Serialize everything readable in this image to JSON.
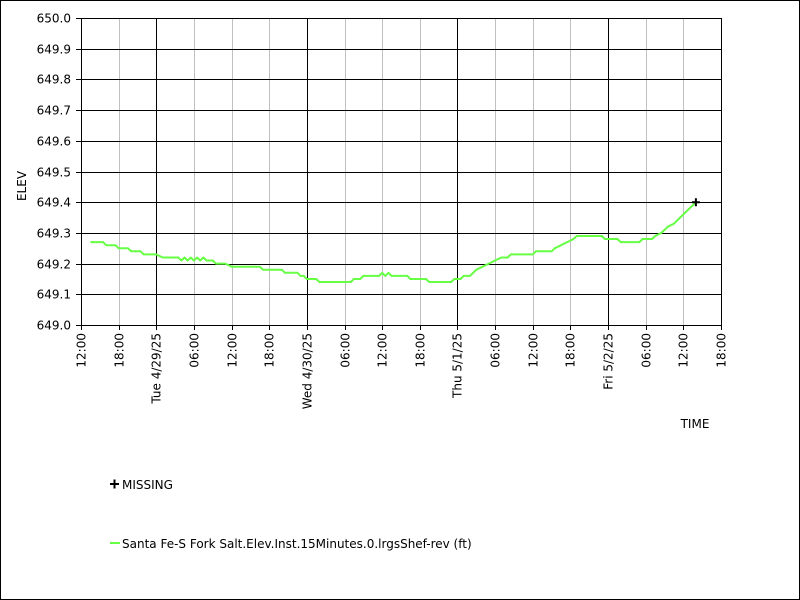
{
  "chart_data": {
    "type": "line",
    "title": "",
    "xlabel": "TIME",
    "ylabel": "ELEV",
    "ylim": [
      649.0,
      650.0
    ],
    "yticks": [
      "649.0",
      "649.1",
      "649.2",
      "649.3",
      "649.4",
      "649.5",
      "649.6",
      "649.7",
      "649.8",
      "649.9",
      "650.0"
    ],
    "xrange_hours": [
      0,
      102
    ],
    "xticks": [
      {
        "hour": 0,
        "label": "12:00",
        "major": false
      },
      {
        "hour": 6,
        "label": "18:00",
        "major": false
      },
      {
        "hour": 12,
        "label": "Tue 4/29/25",
        "major": true
      },
      {
        "hour": 18,
        "label": "06:00",
        "major": false
      },
      {
        "hour": 24,
        "label": "12:00",
        "major": false
      },
      {
        "hour": 30,
        "label": "18:00",
        "major": false
      },
      {
        "hour": 36,
        "label": "Wed 4/30/25",
        "major": true
      },
      {
        "hour": 42,
        "label": "06:00",
        "major": false
      },
      {
        "hour": 48,
        "label": "12:00",
        "major": false
      },
      {
        "hour": 54,
        "label": "18:00",
        "major": false
      },
      {
        "hour": 60,
        "label": "Thu 5/1/25",
        "major": true
      },
      {
        "hour": 66,
        "label": "06:00",
        "major": false
      },
      {
        "hour": 72,
        "label": "12:00",
        "major": false
      },
      {
        "hour": 78,
        "label": "18:00",
        "major": false
      },
      {
        "hour": 84,
        "label": "Fri 5/2/25",
        "major": true
      },
      {
        "hour": 90,
        "label": "06:00",
        "major": false
      },
      {
        "hour": 96,
        "label": "12:00",
        "major": false
      },
      {
        "hour": 102,
        "label": "18:00",
        "major": false
      }
    ],
    "grid": true,
    "legend_placement": "bottom-left",
    "series": [
      {
        "name": "Santa Fe-S Fork Salt.Elev.Inst.15Minutes.0.lrgsShef-rev (ft)",
        "color": "#66ff44",
        "points": [
          [
            1.5,
            649.27
          ],
          [
            3.5,
            649.27
          ],
          [
            4.0,
            649.26
          ],
          [
            5.5,
            649.26
          ],
          [
            6.0,
            649.25
          ],
          [
            7.5,
            649.25
          ],
          [
            8.0,
            649.24
          ],
          [
            9.5,
            649.24
          ],
          [
            10.0,
            649.23
          ],
          [
            11.5,
            649.23
          ],
          [
            12.0,
            649.23
          ],
          [
            13.0,
            649.22
          ],
          [
            15.5,
            649.22
          ],
          [
            16.0,
            649.21
          ],
          [
            16.5,
            649.22
          ],
          [
            17.0,
            649.21
          ],
          [
            17.5,
            649.22
          ],
          [
            18.0,
            649.21
          ],
          [
            18.5,
            649.22
          ],
          [
            19.0,
            649.21
          ],
          [
            19.5,
            649.22
          ],
          [
            20.0,
            649.21
          ],
          [
            21.0,
            649.21
          ],
          [
            21.5,
            649.2
          ],
          [
            23.0,
            649.2
          ],
          [
            24.0,
            649.19
          ],
          [
            28.5,
            649.19
          ],
          [
            29.0,
            649.18
          ],
          [
            32.0,
            649.18
          ],
          [
            32.5,
            649.17
          ],
          [
            34.5,
            649.17
          ],
          [
            35.0,
            649.16
          ],
          [
            35.5,
            649.16
          ],
          [
            36.0,
            649.15
          ],
          [
            37.5,
            649.15
          ],
          [
            38.0,
            649.14
          ],
          [
            43.0,
            649.14
          ],
          [
            43.5,
            649.15
          ],
          [
            44.5,
            649.15
          ],
          [
            45.0,
            649.16
          ],
          [
            47.5,
            649.16
          ],
          [
            48.0,
            649.17
          ],
          [
            48.5,
            649.16
          ],
          [
            49.0,
            649.17
          ],
          [
            49.5,
            649.16
          ],
          [
            52.0,
            649.16
          ],
          [
            52.5,
            649.15
          ],
          [
            55.0,
            649.15
          ],
          [
            55.5,
            649.14
          ],
          [
            59.0,
            649.14
          ],
          [
            59.5,
            649.15
          ],
          [
            60.5,
            649.15
          ],
          [
            61.0,
            649.16
          ],
          [
            62.0,
            649.16
          ],
          [
            62.5,
            649.17
          ],
          [
            63.0,
            649.18
          ],
          [
            64.0,
            649.19
          ],
          [
            65.0,
            649.2
          ],
          [
            66.0,
            649.21
          ],
          [
            67.0,
            649.22
          ],
          [
            68.0,
            649.22
          ],
          [
            68.5,
            649.23
          ],
          [
            72.0,
            649.23
          ],
          [
            72.5,
            649.24
          ],
          [
            75.0,
            649.24
          ],
          [
            75.5,
            649.25
          ],
          [
            76.5,
            649.26
          ],
          [
            77.5,
            649.27
          ],
          [
            78.5,
            649.28
          ],
          [
            79.0,
            649.29
          ],
          [
            83.0,
            649.29
          ],
          [
            83.5,
            649.28
          ],
          [
            85.5,
            649.28
          ],
          [
            86.0,
            649.27
          ],
          [
            89.0,
            649.27
          ],
          [
            89.5,
            649.28
          ],
          [
            91.0,
            649.28
          ],
          [
            91.5,
            649.29
          ],
          [
            92.5,
            649.3
          ],
          [
            93.5,
            649.32
          ],
          [
            94.5,
            649.33
          ],
          [
            95.5,
            649.35
          ],
          [
            96.5,
            649.37
          ],
          [
            97.0,
            649.38
          ],
          [
            97.5,
            649.39
          ],
          [
            98.0,
            649.4
          ]
        ]
      }
    ],
    "missing_legend_label": "MISSING",
    "missing_points": [
      [
        98.0,
        649.4
      ]
    ]
  }
}
